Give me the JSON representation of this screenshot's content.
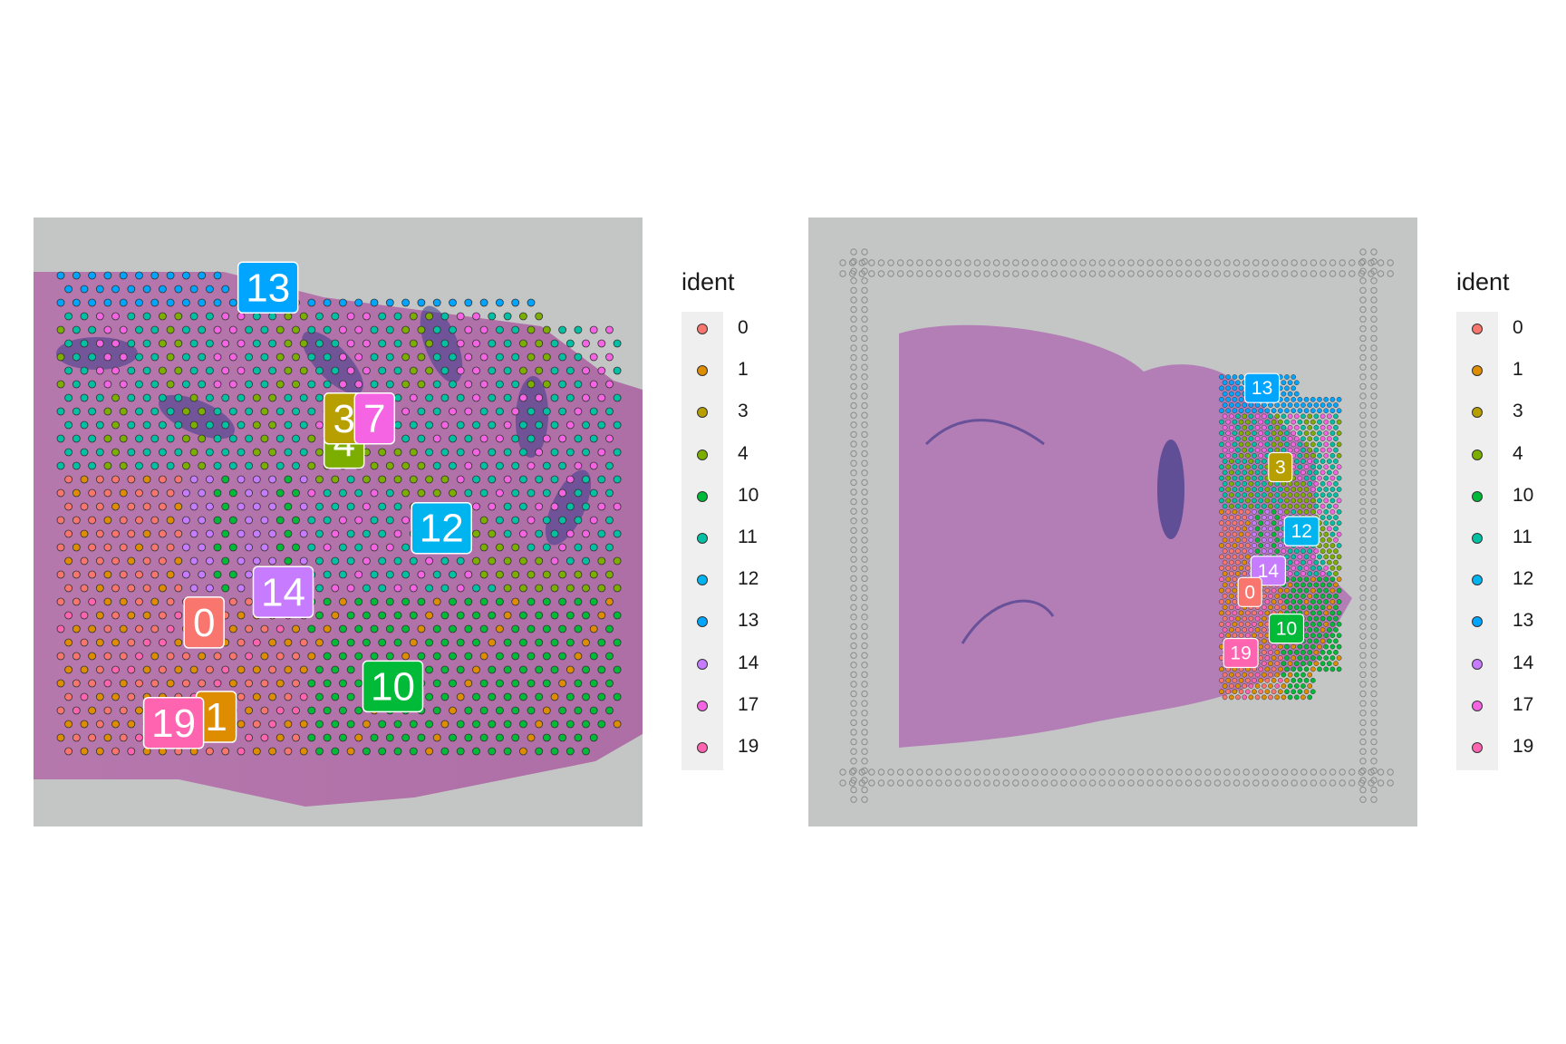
{
  "chart_data": [
    {
      "type": "scatter",
      "legend_title": "ident",
      "legend_position": "right",
      "point_border": "#333333",
      "clusters": [
        {
          "id": "0",
          "color": "#F8766D"
        },
        {
          "id": "1",
          "color": "#DE8C00"
        },
        {
          "id": "3",
          "color": "#B79F00"
        },
        {
          "id": "4",
          "color": "#7CAE00"
        },
        {
          "id": "10",
          "color": "#00BA38"
        },
        {
          "id": "11",
          "color": "#00C1A3"
        },
        {
          "id": "12",
          "color": "#00B4F0"
        },
        {
          "id": "13",
          "color": "#00A5FF"
        },
        {
          "id": "14",
          "color": "#C77CFF"
        },
        {
          "id": "17",
          "color": "#F564E3"
        },
        {
          "id": "19",
          "color": "#FF64B0"
        }
      ],
      "cluster_labels": [
        {
          "text": "13",
          "x": 0.385,
          "y": 0.115
        },
        {
          "text": "4",
          "x": 0.51,
          "y": 0.37
        },
        {
          "text": "3",
          "x": 0.51,
          "y": 0.33
        },
        {
          "text": "7",
          "x": 0.56,
          "y": 0.33
        },
        {
          "text": "12",
          "x": 0.67,
          "y": 0.51
        },
        {
          "text": "14",
          "x": 0.41,
          "y": 0.615
        },
        {
          "text": "0",
          "x": 0.28,
          "y": 0.665
        },
        {
          "text": "10",
          "x": 0.59,
          "y": 0.77
        },
        {
          "text": "1",
          "x": 0.3,
          "y": 0.82
        },
        {
          "text": "19",
          "x": 0.23,
          "y": 0.83
        }
      ]
    },
    {
      "type": "scatter",
      "legend_title": "ident",
      "legend_position": "right",
      "point_border": "#333333",
      "clusters": [
        {
          "id": "0",
          "color": "#F8766D"
        },
        {
          "id": "1",
          "color": "#DE8C00"
        },
        {
          "id": "3",
          "color": "#B79F00"
        },
        {
          "id": "4",
          "color": "#7CAE00"
        },
        {
          "id": "10",
          "color": "#00BA38"
        },
        {
          "id": "11",
          "color": "#00C1A3"
        },
        {
          "id": "12",
          "color": "#00B4F0"
        },
        {
          "id": "13",
          "color": "#00A5FF"
        },
        {
          "id": "14",
          "color": "#C77CFF"
        },
        {
          "id": "17",
          "color": "#F564E3"
        },
        {
          "id": "19",
          "color": "#FF64B0"
        }
      ],
      "cluster_labels": [
        {
          "text": "13",
          "x": 0.745,
          "y": 0.28
        },
        {
          "text": "3",
          "x": 0.775,
          "y": 0.41
        },
        {
          "text": "12",
          "x": 0.81,
          "y": 0.515
        },
        {
          "text": "14",
          "x": 0.755,
          "y": 0.58
        },
        {
          "text": "0",
          "x": 0.725,
          "y": 0.615
        },
        {
          "text": "10",
          "x": 0.785,
          "y": 0.675
        },
        {
          "text": "19",
          "x": 0.71,
          "y": 0.715
        }
      ]
    }
  ]
}
